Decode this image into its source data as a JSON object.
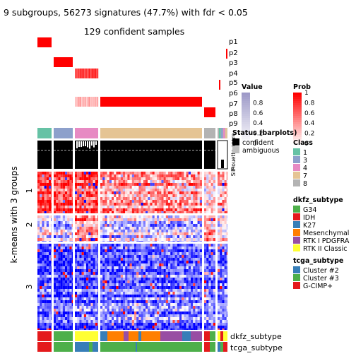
{
  "title": "9 subgroups, 56273 signatures (47.7%) with fdr < 0.05",
  "subtitle": "129 confident samples",
  "row_title": "k-means with 3 groups",
  "chart_data": {
    "type": "heatmap",
    "title": "9 subgroups, 56273 signatures (47.7%) with fdr < 0.05",
    "subtitle": "129 confident samples",
    "row_title": "k-means with 3 groups",
    "row_groups": [
      "1",
      "2",
      "3"
    ],
    "prob_tracks": [
      "p1",
      "p2",
      "p3",
      "p4",
      "p5",
      "p6",
      "p7",
      "p8",
      "p9"
    ],
    "annotation_tracks": [
      "dkfz_subtype",
      "tcga_subtype"
    ],
    "column_class_colors": [
      "#66C2A5",
      "#8DA0CB",
      "#E78AC3",
      "#E5C494",
      "#B3B3B3",
      "#B3B3B3"
    ],
    "silhouette_label": "Silhouette score",
    "silhouette_ticks": [
      {
        "value": 1,
        "label": "1"
      },
      {
        "value": 0,
        "label": "0"
      }
    ],
    "heatmap_scale": {
      "low": "#0000FF",
      "mid": "#FFFFFF",
      "high": "#FF0000"
    },
    "legends": {
      "value": {
        "title": "Value",
        "ticks": [
          "0.8",
          "0.6",
          "0.4",
          "0.2",
          "0"
        ],
        "low": "#FFFFFF",
        "high": "#9E9AC8"
      },
      "prob": {
        "title": "Prob",
        "ticks": [
          "1",
          "0.8",
          "0.6",
          "0.4",
          "0.2",
          "0"
        ],
        "low": "#FFFFFF",
        "high": "#FF0000"
      },
      "status": {
        "title": "Status (barplots)",
        "items": [
          {
            "label": "confident",
            "color": "#000000"
          },
          {
            "label": "ambiguous",
            "color": "#BEBEBE"
          }
        ]
      },
      "class": {
        "title": "Class",
        "items": [
          {
            "label": "1",
            "color": "#66C2A5"
          },
          {
            "label": "3",
            "color": "#8DA0CB"
          },
          {
            "label": "4",
            "color": "#E78AC3"
          },
          {
            "label": "7",
            "color": "#E5C494"
          },
          {
            "label": "8",
            "color": "#B3B3B3"
          }
        ]
      },
      "dkfz_subtype": {
        "title": "dkfz_subtype",
        "items": [
          {
            "label": "G34",
            "color": "#4DAF4A"
          },
          {
            "label": "IDH",
            "color": "#E41A1C"
          },
          {
            "label": "K27",
            "color": "#377EB8"
          },
          {
            "label": "Mesenchymal",
            "color": "#FF7F00"
          },
          {
            "label": "RTK I PDGFRA",
            "color": "#984EA3"
          },
          {
            "label": "RTK II Classic",
            "color": "#FFFF33"
          }
        ]
      },
      "tcga_subtype": {
        "title": "tcga_subtype",
        "items": [
          {
            "label": "Cluster #2",
            "color": "#377EB8"
          },
          {
            "label": "Cluster #3",
            "color": "#4DAF4A"
          },
          {
            "label": "G-CIMP+",
            "color": "#E41A1C"
          }
        ]
      }
    }
  }
}
